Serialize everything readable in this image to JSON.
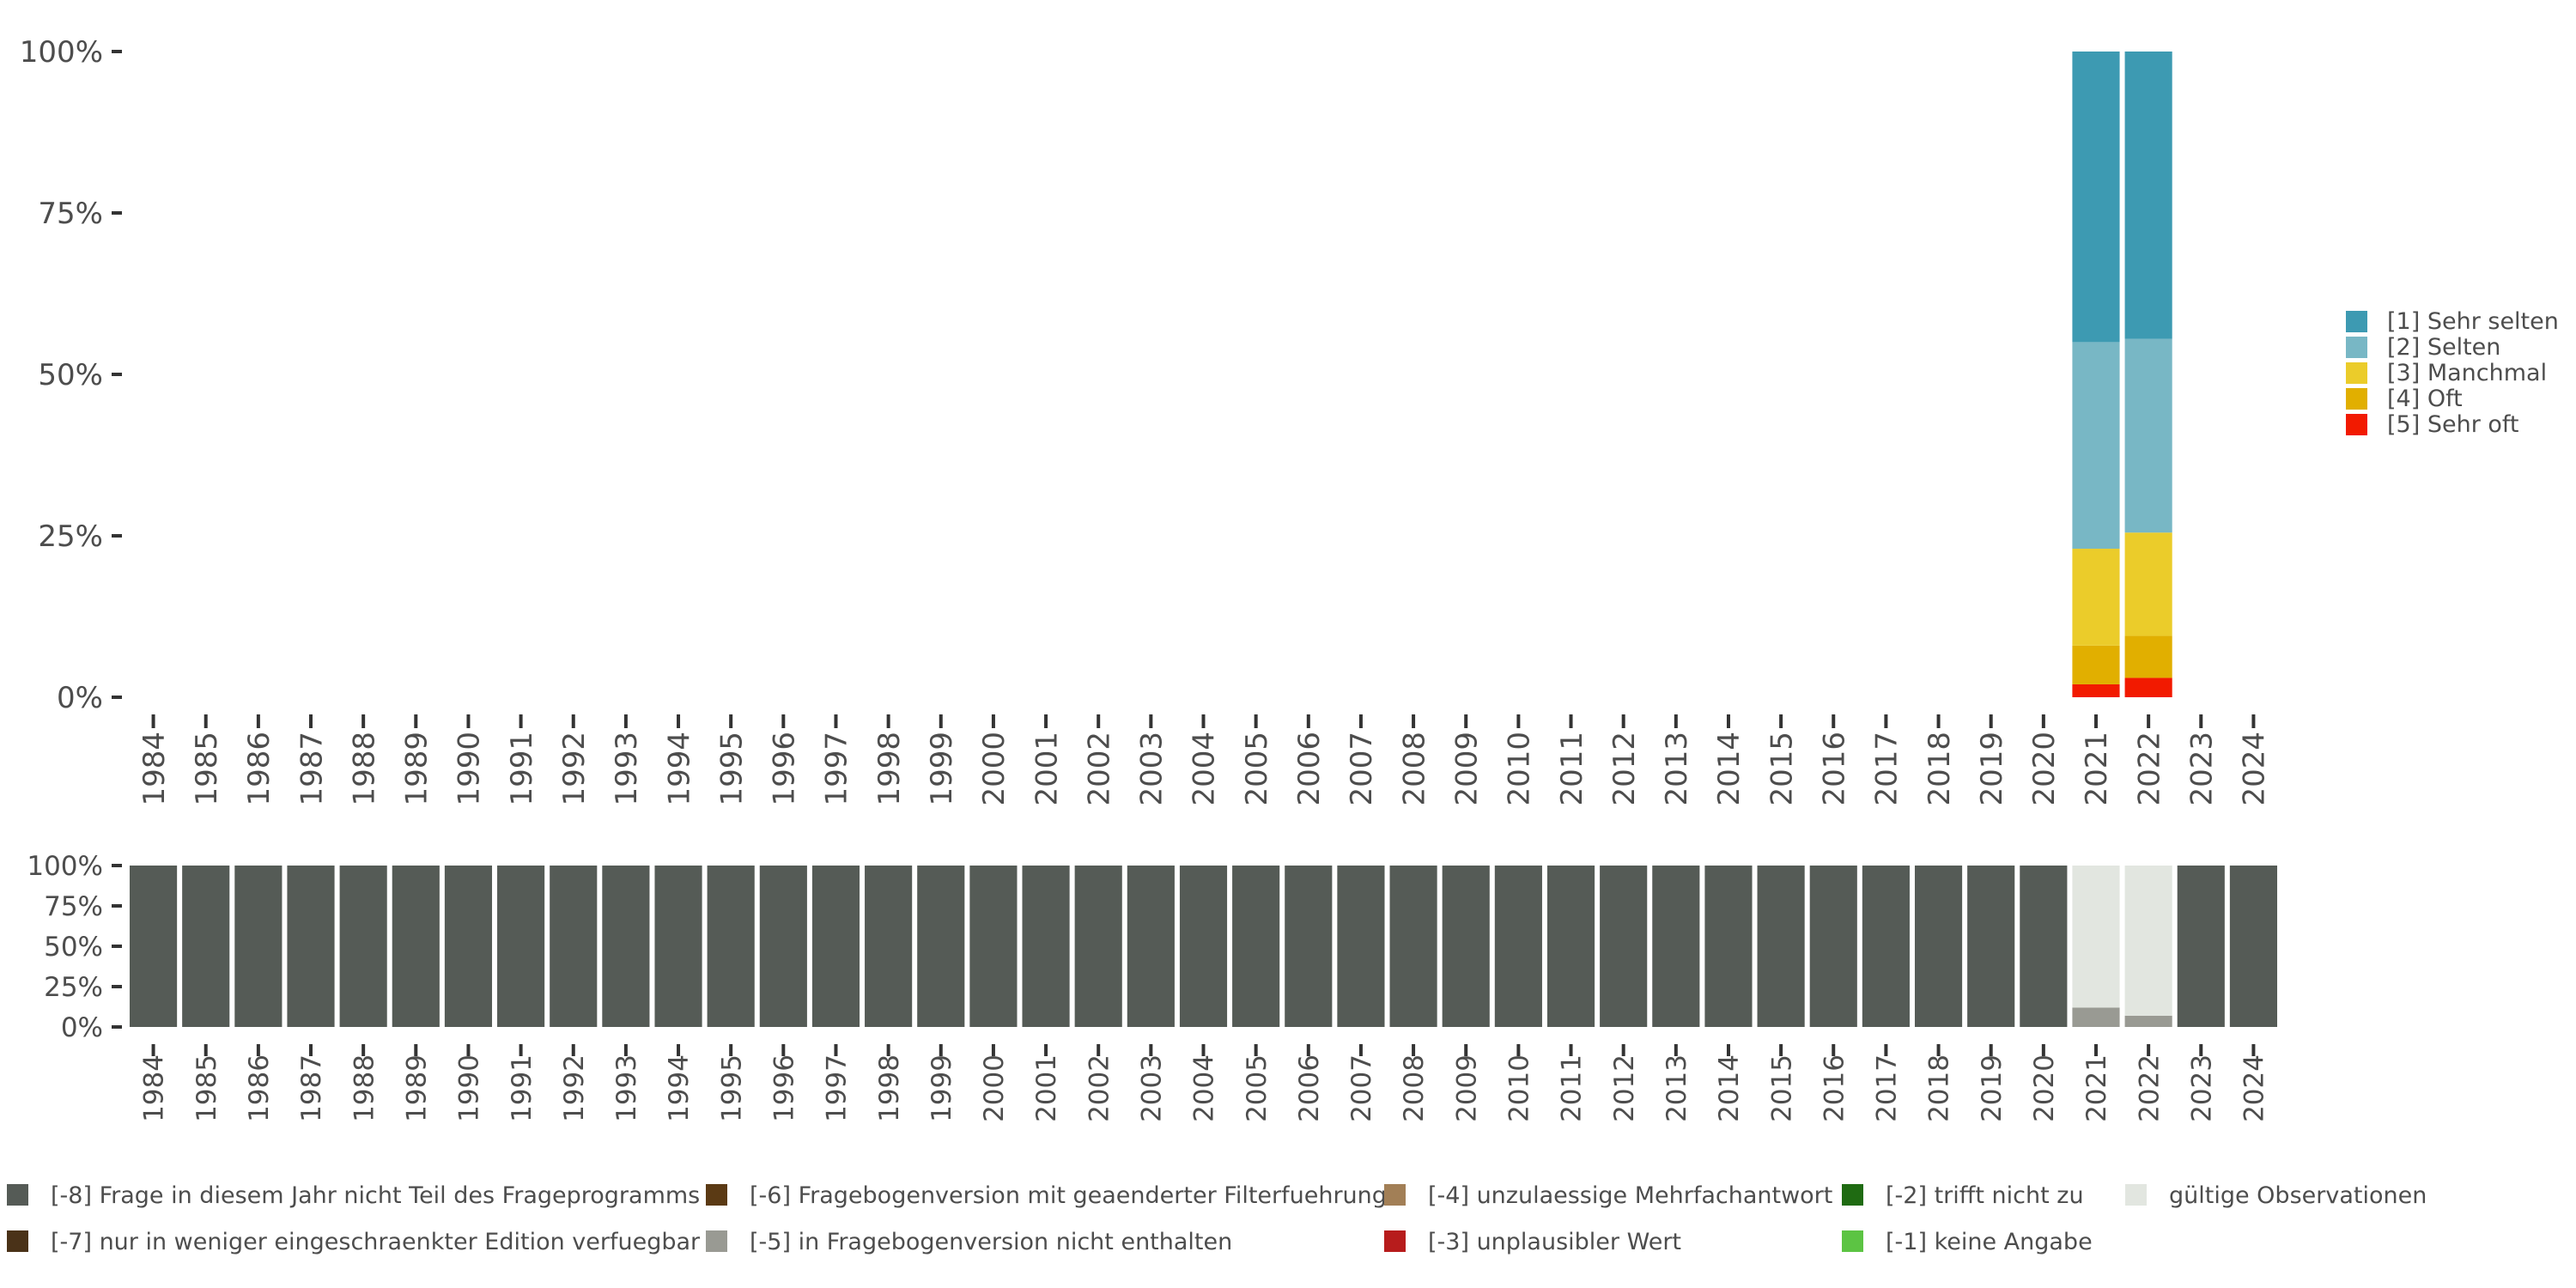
{
  "chart_data": [
    {
      "type": "bar",
      "stacked": true,
      "categories": [
        "1984",
        "1985",
        "1986",
        "1987",
        "1988",
        "1989",
        "1990",
        "1991",
        "1992",
        "1993",
        "1994",
        "1995",
        "1996",
        "1997",
        "1998",
        "1999",
        "2000",
        "2001",
        "2002",
        "2003",
        "2004",
        "2005",
        "2006",
        "2007",
        "2008",
        "2009",
        "2010",
        "2011",
        "2012",
        "2013",
        "2014",
        "2015",
        "2016",
        "2017",
        "2018",
        "2019",
        "2020",
        "2021",
        "2022",
        "2023",
        "2024"
      ],
      "ylim": [
        0,
        100
      ],
      "yticks": [
        "0%",
        "25%",
        "50%",
        "75%",
        "100%"
      ],
      "ytick_values": [
        0,
        25,
        50,
        75,
        100
      ],
      "legend_position": "right",
      "series": [
        {
          "name": "[1] Sehr selten",
          "color": "#3D9AB2",
          "values": {
            "2021": 45,
            "2022": 44.5
          }
        },
        {
          "name": "[2] Selten",
          "color": "#78B7C5",
          "values": {
            "2021": 32,
            "2022": 30
          }
        },
        {
          "name": "[3] Manchmal",
          "color": "#EBCC2A",
          "values": {
            "2021": 15,
            "2022": 16
          }
        },
        {
          "name": "[4] Oft",
          "color": "#E1AF00",
          "values": {
            "2021": 6,
            "2022": 6.5
          }
        },
        {
          "name": "[5] Sehr oft",
          "color": "#F21A00",
          "values": {
            "2021": 2,
            "2022": 3
          }
        }
      ]
    },
    {
      "type": "bar",
      "stacked": true,
      "categories": [
        "1984",
        "1985",
        "1986",
        "1987",
        "1988",
        "1989",
        "1990",
        "1991",
        "1992",
        "1993",
        "1994",
        "1995",
        "1996",
        "1997",
        "1998",
        "1999",
        "2000",
        "2001",
        "2002",
        "2003",
        "2004",
        "2005",
        "2006",
        "2007",
        "2008",
        "2009",
        "2010",
        "2011",
        "2012",
        "2013",
        "2014",
        "2015",
        "2016",
        "2017",
        "2018",
        "2019",
        "2020",
        "2021",
        "2022",
        "2023",
        "2024"
      ],
      "ylim": [
        0,
        100
      ],
      "yticks": [
        "0%",
        "25%",
        "50%",
        "75%",
        "100%"
      ],
      "ytick_values": [
        0,
        25,
        50,
        75,
        100
      ],
      "legend_position": "bottom",
      "series": [
        {
          "name": "gültige Observationen",
          "color": "#E2E6E0",
          "values": {
            "2021": 88,
            "2022": 93
          }
        },
        {
          "name": "[-5] in Fragebogenversion nicht enthalten",
          "color": "#999A93",
          "values": {
            "2021": 12,
            "2022": 7
          }
        },
        {
          "name": "[-8] Frage in diesem Jahr nicht Teil des Frageprogramms",
          "color": "#555B56",
          "values": {
            "1984": 100,
            "1985": 100,
            "1986": 100,
            "1987": 100,
            "1988": 100,
            "1989": 100,
            "1990": 100,
            "1991": 100,
            "1992": 100,
            "1993": 100,
            "1994": 100,
            "1995": 100,
            "1996": 100,
            "1997": 100,
            "1998": 100,
            "1999": 100,
            "2000": 100,
            "2001": 100,
            "2002": 100,
            "2003": 100,
            "2004": 100,
            "2005": 100,
            "2006": 100,
            "2007": 100,
            "2008": 100,
            "2009": 100,
            "2010": 100,
            "2011": 100,
            "2012": 100,
            "2013": 100,
            "2014": 100,
            "2015": 100,
            "2016": 100,
            "2017": 100,
            "2018": 100,
            "2019": 100,
            "2020": 100,
            "2023": 100,
            "2024": 100
          }
        }
      ],
      "legend": [
        {
          "label": "[-8] Frage in diesem Jahr nicht Teil des Frageprogramms",
          "color": "#555B56"
        },
        {
          "label": "[-7] nur in weniger eingeschraenkter Edition verfuegbar",
          "color": "#4A3218"
        },
        {
          "label": "[-6] Fragebogenversion mit geaenderter Filterfuehrung",
          "color": "#5B3A14"
        },
        {
          "label": "[-5] in Fragebogenversion nicht enthalten",
          "color": "#999A93"
        },
        {
          "label": "[-4] unzulaessige Mehrfachantwort",
          "color": "#A27F56"
        },
        {
          "label": "[-3] unplausibler Wert",
          "color": "#B71C1C"
        },
        {
          "label": "[-2] trifft nicht zu",
          "color": "#1F6B12"
        },
        {
          "label": "[-1] keine Angabe",
          "color": "#5CC443"
        },
        {
          "label": "gültige Observationen",
          "color": "#E2E6E0"
        }
      ]
    }
  ]
}
